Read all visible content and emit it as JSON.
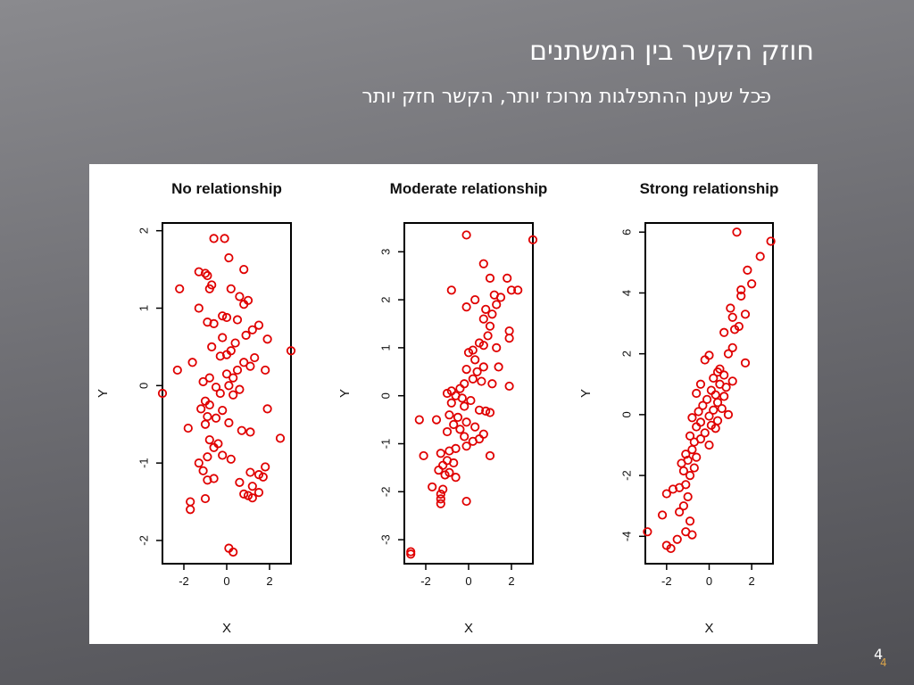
{
  "slide": {
    "title": "חוזק הקשר בין המשתנים",
    "bullet_marker": "-",
    "bullet_text": "ככל שענן ההתפלגות מרוכז יותר, הקשר חזק יותר",
    "slide_number": "4",
    "slide_number_footer": "4"
  },
  "chart_data": [
    {
      "type": "scatter",
      "title": "No relationship",
      "xlabel": "X",
      "ylabel": "Y",
      "xlim": [
        -3,
        3
      ],
      "ylim": [
        -2.3,
        2.1
      ],
      "xticks": [
        -2,
        0,
        2
      ],
      "yticks": [
        -2,
        -1,
        0,
        1,
        2
      ],
      "marker_color": "#e00000",
      "points": [
        [
          -0.6,
          1.9
        ],
        [
          -0.1,
          1.9
        ],
        [
          0.1,
          1.65
        ],
        [
          0.8,
          1.5
        ],
        [
          -1.3,
          1.47
        ],
        [
          -1.0,
          1.45
        ],
        [
          -0.9,
          1.42
        ],
        [
          -0.7,
          1.3
        ],
        [
          -0.8,
          1.25
        ],
        [
          0.2,
          1.25
        ],
        [
          -2.2,
          1.25
        ],
        [
          0.6,
          1.15
        ],
        [
          1.0,
          1.1
        ],
        [
          0.8,
          1.05
        ],
        [
          -1.3,
          1.0
        ],
        [
          -0.2,
          0.9
        ],
        [
          0.0,
          0.88
        ],
        [
          0.5,
          0.85
        ],
        [
          -0.9,
          0.82
        ],
        [
          -0.6,
          0.8
        ],
        [
          1.5,
          0.78
        ],
        [
          1.2,
          0.72
        ],
        [
          0.9,
          0.65
        ],
        [
          -0.2,
          0.62
        ],
        [
          1.9,
          0.6
        ],
        [
          0.4,
          0.55
        ],
        [
          -0.7,
          0.5
        ],
        [
          0.2,
          0.45
        ],
        [
          3.0,
          0.45
        ],
        [
          0.0,
          0.4
        ],
        [
          -0.3,
          0.38
        ],
        [
          1.3,
          0.36
        ],
        [
          0.8,
          0.3
        ],
        [
          -1.6,
          0.3
        ],
        [
          1.1,
          0.25
        ],
        [
          -2.3,
          0.2
        ],
        [
          0.5,
          0.2
        ],
        [
          1.8,
          0.2
        ],
        [
          0.0,
          0.15
        ],
        [
          -0.8,
          0.1
        ],
        [
          0.3,
          0.1
        ],
        [
          -1.1,
          0.05
        ],
        [
          0.1,
          0.0
        ],
        [
          -0.5,
          -0.02
        ],
        [
          0.6,
          -0.05
        ],
        [
          -3.0,
          -0.1
        ],
        [
          -0.3,
          -0.1
        ],
        [
          0.3,
          -0.12
        ],
        [
          -1.0,
          -0.2
        ],
        [
          -0.8,
          -0.25
        ],
        [
          -1.2,
          -0.3
        ],
        [
          -0.2,
          -0.32
        ],
        [
          1.9,
          -0.3
        ],
        [
          -0.9,
          -0.4
        ],
        [
          -0.5,
          -0.42
        ],
        [
          -1.0,
          -0.5
        ],
        [
          0.1,
          -0.48
        ],
        [
          -1.8,
          -0.55
        ],
        [
          0.7,
          -0.58
        ],
        [
          1.1,
          -0.6
        ],
        [
          2.5,
          -0.68
        ],
        [
          -0.8,
          -0.7
        ],
        [
          -0.4,
          -0.75
        ],
        [
          -0.6,
          -0.8
        ],
        [
          -0.2,
          -0.9
        ],
        [
          -0.9,
          -0.92
        ],
        [
          0.2,
          -0.95
        ],
        [
          -1.3,
          -1.0
        ],
        [
          1.8,
          -1.05
        ],
        [
          -1.1,
          -1.1
        ],
        [
          1.1,
          -1.12
        ],
        [
          1.5,
          -1.15
        ],
        [
          1.7,
          -1.18
        ],
        [
          -0.6,
          -1.2
        ],
        [
          -0.9,
          -1.22
        ],
        [
          0.6,
          -1.25
        ],
        [
          1.2,
          -1.3
        ],
        [
          1.5,
          -1.38
        ],
        [
          0.8,
          -1.4
        ],
        [
          1.0,
          -1.42
        ],
        [
          1.2,
          -1.45
        ],
        [
          -1.0,
          -1.46
        ],
        [
          -1.7,
          -1.5
        ],
        [
          -1.7,
          -1.6
        ],
        [
          0.1,
          -2.1
        ],
        [
          0.3,
          -2.15
        ]
      ]
    },
    {
      "type": "scatter",
      "title": "Moderate relationship",
      "xlabel": "X",
      "ylabel": "Y",
      "xlim": [
        -3,
        3
      ],
      "ylim": [
        -3.5,
        3.6
      ],
      "xticks": [
        -2,
        0,
        2
      ],
      "yticks": [
        -3,
        -2,
        -1,
        0,
        1,
        2,
        3
      ],
      "marker_color": "#e00000",
      "points": [
        [
          -0.1,
          3.35
        ],
        [
          3.0,
          3.25
        ],
        [
          0.7,
          2.75
        ],
        [
          1.0,
          2.45
        ],
        [
          1.8,
          2.45
        ],
        [
          -0.8,
          2.2
        ],
        [
          2.0,
          2.2
        ],
        [
          2.3,
          2.2
        ],
        [
          1.2,
          2.1
        ],
        [
          1.5,
          2.05
        ],
        [
          0.3,
          2.0
        ],
        [
          1.3,
          1.9
        ],
        [
          -0.1,
          1.85
        ],
        [
          0.8,
          1.8
        ],
        [
          1.1,
          1.7
        ],
        [
          0.7,
          1.6
        ],
        [
          1.0,
          1.45
        ],
        [
          1.9,
          1.35
        ],
        [
          1.9,
          1.2
        ],
        [
          0.9,
          1.25
        ],
        [
          0.5,
          1.1
        ],
        [
          0.7,
          1.05
        ],
        [
          0.2,
          0.95
        ],
        [
          1.3,
          1.0
        ],
        [
          0.0,
          0.9
        ],
        [
          0.3,
          0.75
        ],
        [
          0.7,
          0.6
        ],
        [
          1.4,
          0.6
        ],
        [
          0.4,
          0.5
        ],
        [
          -0.1,
          0.55
        ],
        [
          0.2,
          0.35
        ],
        [
          0.6,
          0.3
        ],
        [
          1.1,
          0.25
        ],
        [
          1.9,
          0.2
        ],
        [
          -0.2,
          0.25
        ],
        [
          -0.4,
          0.15
        ],
        [
          -0.8,
          0.1
        ],
        [
          -1.0,
          0.05
        ],
        [
          -0.6,
          0.0
        ],
        [
          -0.3,
          -0.05
        ],
        [
          0.1,
          -0.1
        ],
        [
          -0.8,
          -0.15
        ],
        [
          -0.2,
          -0.22
        ],
        [
          0.5,
          -0.3
        ],
        [
          0.8,
          -0.32
        ],
        [
          1.0,
          -0.35
        ],
        [
          -0.9,
          -0.4
        ],
        [
          -0.5,
          -0.45
        ],
        [
          -2.3,
          -0.5
        ],
        [
          -1.5,
          -0.5
        ],
        [
          -0.1,
          -0.55
        ],
        [
          -0.7,
          -0.6
        ],
        [
          0.3,
          -0.65
        ],
        [
          -0.4,
          -0.7
        ],
        [
          -1.0,
          -0.75
        ],
        [
          0.7,
          -0.8
        ],
        [
          -0.2,
          -0.85
        ],
        [
          0.5,
          -0.9
        ],
        [
          0.2,
          -0.95
        ],
        [
          -0.1,
          -1.05
        ],
        [
          -0.6,
          -1.1
        ],
        [
          -0.9,
          -1.15
        ],
        [
          -1.3,
          -1.2
        ],
        [
          -2.1,
          -1.25
        ],
        [
          1.0,
          -1.25
        ],
        [
          -1.0,
          -1.35
        ],
        [
          -0.7,
          -1.4
        ],
        [
          -1.2,
          -1.45
        ],
        [
          -1.4,
          -1.55
        ],
        [
          -0.9,
          -1.6
        ],
        [
          -1.1,
          -1.65
        ],
        [
          -0.6,
          -1.7
        ],
        [
          -1.7,
          -1.9
        ],
        [
          -1.2,
          -1.95
        ],
        [
          -1.3,
          -2.05
        ],
        [
          -1.3,
          -2.15
        ],
        [
          -0.1,
          -2.2
        ],
        [
          -1.3,
          -2.25
        ],
        [
          -2.7,
          -3.25
        ],
        [
          -2.7,
          -3.3
        ]
      ]
    },
    {
      "type": "scatter",
      "title": "Strong relationship",
      "xlabel": "X",
      "ylabel": "Y",
      "xlim": [
        -3,
        3
      ],
      "ylim": [
        -4.9,
        6.3
      ],
      "xticks": [
        -2,
        0,
        2
      ],
      "yticks": [
        -4,
        -2,
        0,
        2,
        4,
        6
      ],
      "marker_color": "#e00000",
      "points": [
        [
          1.3,
          6.0
        ],
        [
          2.9,
          5.7
        ],
        [
          2.4,
          5.2
        ],
        [
          1.8,
          4.75
        ],
        [
          2.0,
          4.3
        ],
        [
          1.5,
          4.1
        ],
        [
          1.5,
          3.9
        ],
        [
          1.0,
          3.5
        ],
        [
          1.7,
          3.3
        ],
        [
          1.1,
          3.2
        ],
        [
          1.4,
          2.9
        ],
        [
          1.2,
          2.8
        ],
        [
          0.7,
          2.7
        ],
        [
          1.1,
          2.2
        ],
        [
          0.9,
          2.0
        ],
        [
          0.0,
          1.95
        ],
        [
          1.7,
          1.7
        ],
        [
          -0.2,
          1.8
        ],
        [
          0.5,
          1.5
        ],
        [
          0.4,
          1.4
        ],
        [
          0.7,
          1.3
        ],
        [
          0.2,
          1.2
        ],
        [
          1.1,
          1.1
        ],
        [
          0.5,
          1.0
        ],
        [
          -0.4,
          1.0
        ],
        [
          0.8,
          0.9
        ],
        [
          0.1,
          0.8
        ],
        [
          -0.6,
          0.7
        ],
        [
          0.3,
          0.65
        ],
        [
          0.7,
          0.6
        ],
        [
          -0.1,
          0.5
        ],
        [
          0.4,
          0.4
        ],
        [
          -0.3,
          0.3
        ],
        [
          0.6,
          0.2
        ],
        [
          0.2,
          0.15
        ],
        [
          -0.5,
          0.1
        ],
        [
          0.9,
          0.0
        ],
        [
          0.0,
          -0.05
        ],
        [
          -0.8,
          -0.1
        ],
        [
          0.4,
          -0.2
        ],
        [
          -0.4,
          -0.25
        ],
        [
          0.1,
          -0.35
        ],
        [
          -0.6,
          -0.4
        ],
        [
          0.3,
          -0.45
        ],
        [
          -0.2,
          -0.6
        ],
        [
          -0.9,
          -0.7
        ],
        [
          -0.4,
          -0.8
        ],
        [
          -0.7,
          -0.9
        ],
        [
          0.0,
          -1.0
        ],
        [
          -0.8,
          -1.15
        ],
        [
          -1.1,
          -1.3
        ],
        [
          -0.6,
          -1.4
        ],
        [
          -1.0,
          -1.5
        ],
        [
          -1.3,
          -1.6
        ],
        [
          -0.7,
          -1.75
        ],
        [
          -1.2,
          -1.85
        ],
        [
          -0.9,
          -2.0
        ],
        [
          -1.1,
          -2.3
        ],
        [
          -1.4,
          -2.4
        ],
        [
          -1.7,
          -2.45
        ],
        [
          -2.0,
          -2.6
        ],
        [
          -1.0,
          -2.7
        ],
        [
          -1.2,
          -3.0
        ],
        [
          -1.4,
          -3.2
        ],
        [
          -2.2,
          -3.3
        ],
        [
          -0.9,
          -3.5
        ],
        [
          -2.9,
          -3.85
        ],
        [
          -1.1,
          -3.85
        ],
        [
          -0.8,
          -3.95
        ],
        [
          -1.5,
          -4.1
        ],
        [
          -2.0,
          -4.3
        ],
        [
          -1.8,
          -4.4
        ]
      ]
    }
  ]
}
